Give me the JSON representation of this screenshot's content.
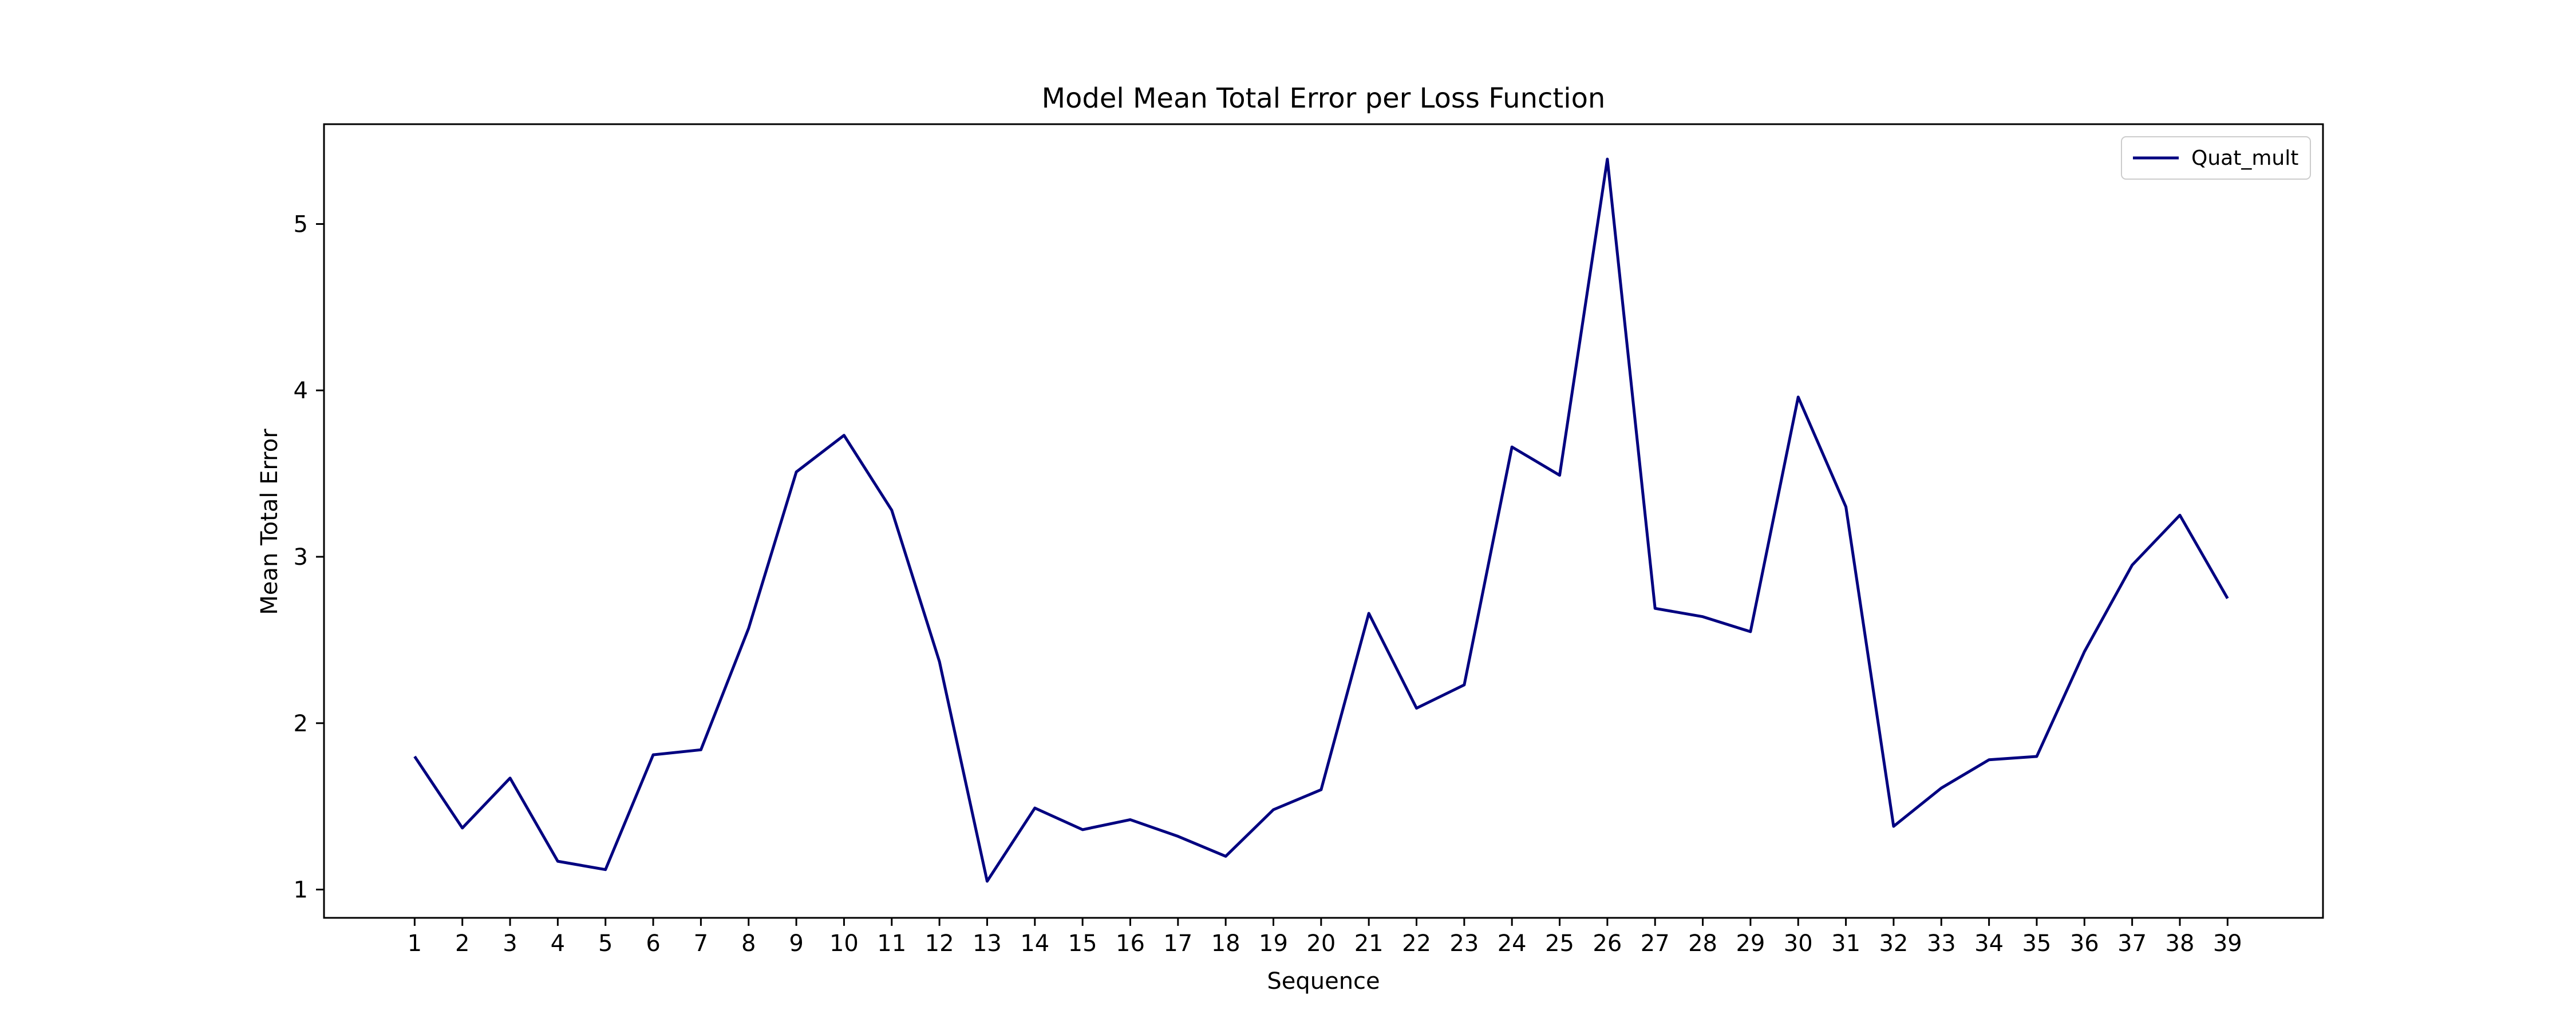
{
  "chart_data": {
    "type": "line",
    "title": "Model Mean Total Error per Loss Function",
    "xlabel": "Sequence",
    "ylabel": "Mean Total Error",
    "x": [
      1,
      2,
      3,
      4,
      5,
      6,
      7,
      8,
      9,
      10,
      11,
      12,
      13,
      14,
      15,
      16,
      17,
      18,
      19,
      20,
      21,
      22,
      23,
      24,
      25,
      26,
      27,
      28,
      29,
      30,
      31,
      32,
      33,
      34,
      35,
      36,
      37,
      38,
      39
    ],
    "series": [
      {
        "name": "Quat_mult",
        "color": "#000080",
        "values": [
          1.8,
          1.37,
          1.67,
          1.17,
          1.12,
          1.81,
          1.84,
          2.57,
          3.51,
          3.73,
          3.28,
          2.37,
          1.05,
          1.49,
          1.36,
          1.42,
          1.32,
          1.2,
          1.48,
          1.6,
          2.66,
          2.09,
          2.23,
          3.66,
          3.49,
          5.39,
          2.69,
          2.64,
          2.55,
          3.96,
          3.3,
          1.38,
          1.61,
          1.78,
          1.8,
          2.43,
          2.95,
          3.25,
          2.75
        ]
      }
    ],
    "xticks": [
      "1",
      "2",
      "3",
      "4",
      "5",
      "6",
      "7",
      "8",
      "9",
      "10",
      "11",
      "12",
      "13",
      "14",
      "15",
      "16",
      "17",
      "18",
      "19",
      "20",
      "21",
      "22",
      "23",
      "24",
      "25",
      "26",
      "27",
      "28",
      "29",
      "30",
      "31",
      "32",
      "33",
      "34",
      "35",
      "36",
      "37",
      "38",
      "39"
    ],
    "yticks": [
      1,
      2,
      3,
      4,
      5
    ],
    "xlim": [
      -0.9,
      41.0
    ],
    "ylim": [
      0.83,
      5.6
    ],
    "grid": false,
    "legend_position": "top-right"
  }
}
